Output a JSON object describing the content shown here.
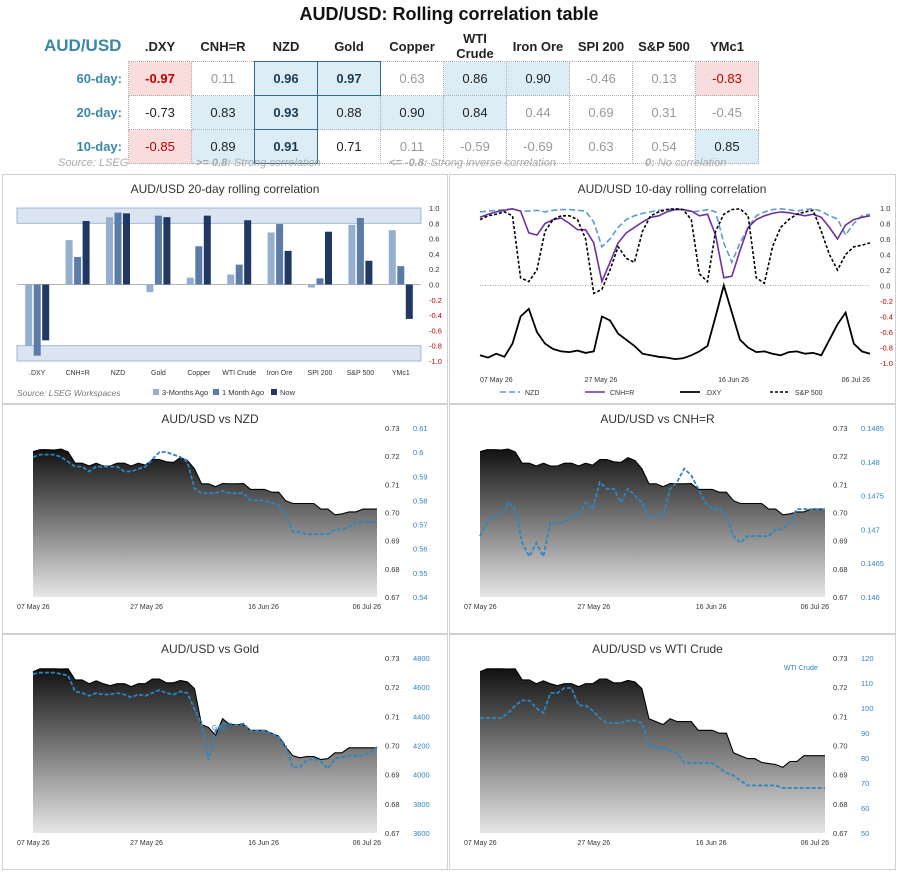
{
  "title": "AUD/USD: Rolling correlation table",
  "table": {
    "pair": "AUD/USD",
    "columns": [
      ".DXY",
      "CNH=R",
      "NZD",
      "Gold",
      "Copper",
      "WTI Crude",
      "Iron Ore",
      "SPI 200",
      "S&P 500",
      "YMc1"
    ],
    "rows": [
      {
        "label": "60-day:",
        "values": [
          "-0.97",
          "0.11",
          "0.96",
          "0.97",
          "0.63",
          "0.86",
          "0.90",
          "-0.46",
          "0.13",
          "-0.83"
        ]
      },
      {
        "label": "20-day:",
        "values": [
          "-0.73",
          "0.83",
          "0.93",
          "0.88",
          "0.90",
          "0.84",
          "0.44",
          "0.69",
          "0.31",
          "-0.45"
        ]
      },
      {
        "label": "10-day:",
        "values": [
          "-0.85",
          "0.89",
          "0.91",
          "0.71",
          "0.11",
          "-0.59",
          "-0.69",
          "0.63",
          "0.54",
          "0.85"
        ]
      }
    ]
  },
  "footer": {
    "source": "Source: LSEG",
    "strong_key": ">= 0.8:",
    "strong_text": "Strong correlation",
    "inverse_key": "<= -0.8:",
    "inverse_text": "Strong inverse correlation",
    "none_key": "0:",
    "none_text": "No correlation"
  },
  "colors": {
    "accent": "#3b86a8",
    "strong_bg": "#dcedf5",
    "inverse_bg": "#f9dcdc",
    "inverse_text": "#c00000"
  },
  "chart_data": [
    {
      "type": "bar",
      "title": "AUD/USD 20-day rolling correlation",
      "source": "Source: LSEG Workspaces",
      "categories": [
        ".DXY",
        "CNH=R",
        "NZD",
        "Gold",
        "Copper",
        "WTI Crude",
        "Iron Ore",
        "SPI 200",
        "S&P 500",
        "YMc1"
      ],
      "series": [
        {
          "name": "3-Months Ago",
          "values": [
            -0.8,
            0.58,
            0.88,
            -0.1,
            0.09,
            0.13,
            0.68,
            -0.04,
            0.78,
            0.71
          ]
        },
        {
          "name": "1 Month Ago",
          "values": [
            -0.93,
            0.36,
            0.94,
            0.9,
            0.5,
            0.26,
            0.79,
            0.08,
            0.87,
            0.24
          ]
        },
        {
          "name": "Now",
          "values": [
            -0.73,
            0.83,
            0.93,
            0.88,
            0.9,
            0.84,
            0.44,
            0.69,
            0.31,
            -0.45
          ]
        }
      ],
      "ylim": [
        -1.0,
        1.0
      ],
      "yticks": [
        "1.0",
        "0.8",
        "0.6",
        "0.4",
        "0.2",
        "0.0",
        "-0.2",
        "-0.4",
        "-0.6",
        "-0.8",
        "-1.0"
      ],
      "legend": "bottom"
    },
    {
      "type": "line",
      "title": "AUD/USD 10-day rolling correlation",
      "x_labels": [
        "07 May 26",
        "27 May 26",
        "16 Jun 26",
        "06 Jul 26"
      ],
      "ylim": [
        -1.0,
        1.0
      ],
      "yticks": [
        "1.0",
        "0.8",
        "0.6",
        "0.4",
        "0.2",
        "0.0",
        "-0.2",
        "-0.4",
        "-0.6",
        "-0.8",
        "-1.0"
      ],
      "series": [
        {
          "name": "NZD",
          "values": [
            0.95,
            0.96,
            0.97,
            0.98,
            0.99,
            0.96,
            0.96,
            0.97,
            0.95,
            0.97,
            0.98,
            0.98,
            0.97,
            0.96,
            0.82,
            0.5,
            0.6,
            0.75,
            0.85,
            0.9,
            0.93,
            0.95,
            0.97,
            0.98,
            0.99,
            0.98,
            0.95,
            0.96,
            0.98,
            0.95,
            0.55,
            0.3,
            0.55,
            0.75,
            0.9,
            0.95,
            0.98,
            0.99,
            0.98,
            0.96,
            0.98,
            0.99,
            0.96,
            0.9,
            0.86,
            0.65,
            0.8,
            0.9,
            0.92
          ]
        },
        {
          "name": "CNH=R",
          "values": [
            0.88,
            0.92,
            0.95,
            0.97,
            0.99,
            0.96,
            0.68,
            0.65,
            0.8,
            0.85,
            0.87,
            0.8,
            0.72,
            0.72,
            0.55,
            0.05,
            0.3,
            0.55,
            0.68,
            0.75,
            0.82,
            0.88,
            0.9,
            0.95,
            0.98,
            0.98,
            0.96,
            0.9,
            0.92,
            0.65,
            0.1,
            0.12,
            0.45,
            0.75,
            0.85,
            0.9,
            0.93,
            0.95,
            0.94,
            0.92,
            0.9,
            0.92,
            0.88,
            0.75,
            0.6,
            0.78,
            0.85,
            0.88,
            0.9
          ]
        },
        {
          "name": ".DXY",
          "values": [
            -0.9,
            -0.93,
            -0.88,
            -0.92,
            -0.75,
            -0.4,
            -0.3,
            -0.6,
            -0.75,
            -0.82,
            -0.85,
            -0.86,
            -0.84,
            -0.87,
            -0.85,
            -0.4,
            -0.45,
            -0.62,
            -0.7,
            -0.78,
            -0.88,
            -0.9,
            -0.92,
            -0.93,
            -0.95,
            -0.94,
            -0.9,
            -0.85,
            -0.78,
            -0.4,
            0.0,
            -0.35,
            -0.7,
            -0.8,
            -0.86,
            -0.85,
            -0.88,
            -0.9,
            -0.86,
            -0.85,
            -0.88,
            -0.87,
            -0.9,
            -0.7,
            -0.5,
            -0.35,
            -0.75,
            -0.85,
            -0.88
          ]
        },
        {
          "name": "S&P 500",
          "values": [
            0.85,
            0.9,
            0.92,
            0.95,
            0.9,
            0.1,
            0.05,
            0.2,
            0.7,
            0.85,
            0.9,
            0.9,
            0.85,
            0.6,
            -0.1,
            -0.05,
            0.2,
            0.5,
            0.35,
            0.3,
            0.7,
            0.9,
            0.95,
            0.98,
            0.99,
            0.98,
            0.85,
            0.15,
            0.05,
            0.7,
            0.92,
            0.98,
            0.99,
            0.9,
            0.1,
            0.03,
            0.5,
            0.75,
            0.85,
            0.92,
            0.95,
            0.97,
            0.7,
            0.4,
            0.2,
            0.4,
            0.5,
            0.52,
            0.55
          ]
        }
      ],
      "legend": "bottom"
    },
    {
      "type": "area",
      "title": "AUD/USD vs NZD",
      "x_labels": [
        "07 May 26",
        "27 May 26",
        "16 Jun 26",
        "06 Jul 26"
      ],
      "left_axis": {
        "ylim": [
          0.67,
          0.73
        ],
        "ticks": [
          "0.73",
          "0.72",
          "0.71",
          "0.70",
          "0.69",
          "0.68",
          "0.67"
        ]
      },
      "right_axis": {
        "ylim": [
          0.54,
          0.61
        ],
        "ticks": [
          "0.61",
          "0.6",
          "0.59",
          "0.58",
          "0.57",
          "0.56",
          "0.55",
          "0.54"
        ]
      },
      "series": [
        {
          "name": "AUD/USD",
          "axis": "left",
          "values": [
            0.7216,
            0.7223,
            0.7223,
            0.7222,
            0.7225,
            0.7215,
            0.7175,
            0.7175,
            0.7165,
            0.7175,
            0.7165,
            0.7165,
            0.7175,
            0.7175,
            0.7165,
            0.7175,
            0.7168,
            0.7188,
            0.7188,
            0.718,
            0.7178,
            0.7195,
            0.7185,
            0.7155,
            0.7102,
            0.7102,
            0.7092,
            0.7103,
            0.7102,
            0.7102,
            0.7103,
            0.7082,
            0.7082,
            0.7082,
            0.7072,
            0.7072,
            0.7042,
            0.7032,
            0.7032,
            0.7032,
            0.7032,
            0.7012,
            0.7012,
            0.6992,
            0.6995,
            0.7002,
            0.7002,
            0.7012,
            0.7012,
            0.7012
          ]
        },
        {
          "name": "NZD",
          "axis": "right",
          "values": [
            0.598,
            0.599,
            0.599,
            0.599,
            0.598,
            0.596,
            0.594,
            0.594,
            0.592,
            0.594,
            0.594,
            0.594,
            0.594,
            0.592,
            0.592,
            0.593,
            0.594,
            0.597,
            0.6,
            0.6,
            0.599,
            0.598,
            0.596,
            0.585,
            0.583,
            0.583,
            0.583,
            0.584,
            0.583,
            0.583,
            0.583,
            0.58,
            0.58,
            0.58,
            0.579,
            0.578,
            0.574,
            0.567,
            0.567,
            0.566,
            0.566,
            0.566,
            0.566,
            0.568,
            0.568,
            0.569,
            0.571,
            0.571,
            0.571,
            0.571
          ]
        }
      ]
    },
    {
      "type": "area",
      "title": "AUD/USD vs CNH=R",
      "x_labels": [
        "07 May 26",
        "27 May 26",
        "16 Jun 26",
        "06 Jul 26"
      ],
      "left_axis": {
        "ylim": [
          0.67,
          0.73
        ],
        "ticks": [
          "0.73",
          "0.72",
          "0.71",
          "0.70",
          "0.69",
          "0.68",
          "0.67"
        ]
      },
      "right_axis": {
        "ylim": [
          0.146,
          0.1485
        ],
        "ticks": [
          "0.1485",
          "0.148",
          "0.1475",
          "0.147",
          "0.1465",
          "0.146"
        ]
      },
      "series": [
        {
          "name": "AUD/USD",
          "axis": "left",
          "values": [
            0.7216,
            0.7223,
            0.7223,
            0.7222,
            0.7225,
            0.7215,
            0.7175,
            0.7175,
            0.7165,
            0.7175,
            0.7165,
            0.7165,
            0.7175,
            0.7175,
            0.7165,
            0.7175,
            0.7168,
            0.7188,
            0.7188,
            0.718,
            0.7178,
            0.7195,
            0.7185,
            0.7155,
            0.7102,
            0.7102,
            0.7092,
            0.7103,
            0.7102,
            0.7102,
            0.7103,
            0.7082,
            0.7082,
            0.7082,
            0.7072,
            0.7072,
            0.7042,
            0.7032,
            0.7032,
            0.7032,
            0.7032,
            0.7012,
            0.7012,
            0.6992,
            0.6995,
            0.7002,
            0.7002,
            0.7012,
            0.7012,
            0.7012
          ]
        },
        {
          "name": "CNH=R",
          "axis": "right",
          "values": [
            0.1469,
            0.1471,
            0.1472,
            0.1472,
            0.1474,
            0.1473,
            0.1468,
            0.1466,
            0.1468,
            0.1466,
            0.1471,
            0.1471,
            0.1471,
            0.1472,
            0.1472,
            0.1474,
            0.1473,
            0.1477,
            0.1476,
            0.1476,
            0.1474,
            0.1476,
            0.1475,
            0.1474,
            0.1472,
            0.1472,
            0.1472,
            0.1476,
            0.1477,
            0.1479,
            0.1478,
            0.1476,
            0.1474,
            0.1473,
            0.1473,
            0.1472,
            0.1469,
            0.1468,
            0.1469,
            0.1469,
            0.1469,
            0.1469,
            0.147,
            0.147,
            0.1471,
            0.1473,
            0.1473,
            0.1473,
            0.1473,
            0.1473
          ]
        }
      ]
    },
    {
      "type": "area",
      "title": "AUD/USD vs Gold",
      "series_label": "Gold",
      "x_labels": [
        "07 May 26",
        "27 May 26",
        "16 Jun 26",
        "06 Jul 26"
      ],
      "left_axis": {
        "ylim": [
          0.67,
          0.73
        ],
        "ticks": [
          "0.73",
          "0.72",
          "0.71",
          "0.70",
          "0.69",
          "0.68",
          "0.67"
        ]
      },
      "right_axis": {
        "ylim": [
          3600,
          4800
        ],
        "ticks": [
          "4800",
          "4600",
          "4400",
          "4200",
          "4000",
          "3800",
          "3600"
        ]
      },
      "series": [
        {
          "name": "AUD/USD",
          "axis": "left",
          "values": [
            0.7253,
            0.7263,
            0.7263,
            0.7263,
            0.7262,
            0.7263,
            0.7225,
            0.7225,
            0.7212,
            0.7222,
            0.7212,
            0.7205,
            0.7212,
            0.7212,
            0.7202,
            0.7212,
            0.7212,
            0.7228,
            0.7228,
            0.7215,
            0.7215,
            0.7223,
            0.7218,
            0.7195,
            0.7072,
            0.7062,
            0.7035,
            0.7092,
            0.7072,
            0.7072,
            0.7072,
            0.7052,
            0.7052,
            0.7052,
            0.7042,
            0.7032,
            0.6995,
            0.6965,
            0.6958,
            0.6962,
            0.6962,
            0.6952,
            0.6955,
            0.6975,
            0.6975,
            0.6992,
            0.6992,
            0.6992,
            0.6992,
            0.6992
          ]
        },
        {
          "name": "Gold",
          "axis": "right",
          "values": [
            4690,
            4700,
            4700,
            4700,
            4690,
            4680,
            4570,
            4560,
            4540,
            4560,
            4550,
            4550,
            4560,
            4550,
            4530,
            4550,
            4540,
            4560,
            4580,
            4560,
            4550,
            4570,
            4560,
            4450,
            4350,
            4100,
            4300,
            4350,
            4350,
            4340,
            4350,
            4300,
            4300,
            4300,
            4280,
            4260,
            4200,
            4050,
            4050,
            4100,
            4110,
            4090,
            4040,
            4110,
            4120,
            4130,
            4130,
            4130,
            4150,
            4190
          ]
        }
      ]
    },
    {
      "type": "area",
      "title": "AUD/USD vs WTI Crude",
      "series_label": "WTI Crude",
      "x_labels": [
        "07 May 26",
        "27 May 26",
        "16 Jun 26",
        "06 Jul 26"
      ],
      "left_axis": {
        "ylim": [
          0.67,
          0.73
        ],
        "ticks": [
          "0.73",
          "0.72",
          "0.71",
          "0.70",
          "0.69",
          "0.68",
          "0.67"
        ]
      },
      "right_axis": {
        "ylim": [
          50,
          120
        ],
        "ticks": [
          "120",
          "110",
          "100",
          "90",
          "80",
          "70",
          "60",
          "50"
        ]
      },
      "series": [
        {
          "name": "AUD/USD",
          "axis": "left",
          "values": [
            0.7253,
            0.7263,
            0.7263,
            0.7263,
            0.7262,
            0.7263,
            0.7225,
            0.7225,
            0.7212,
            0.7222,
            0.7212,
            0.7205,
            0.7212,
            0.7212,
            0.7202,
            0.7212,
            0.7212,
            0.7228,
            0.7228,
            0.7215,
            0.7215,
            0.7223,
            0.7218,
            0.7195,
            0.7092,
            0.7082,
            0.7072,
            0.7092,
            0.7082,
            0.7082,
            0.7082,
            0.7052,
            0.7052,
            0.7052,
            0.7042,
            0.7042,
            0.6975,
            0.6965,
            0.6955,
            0.6955,
            0.6942,
            0.6938,
            0.6935,
            0.6925,
            0.6945,
            0.6945,
            0.6965,
            0.6965,
            0.6965,
            0.6965
          ]
        },
        {
          "name": "WTI Crude",
          "axis": "right",
          "values": [
            96,
            96,
            96,
            96,
            98,
            101,
            103,
            103,
            100,
            98,
            106,
            106,
            108,
            108,
            101,
            101,
            99,
            96,
            94,
            94,
            94,
            95,
            95,
            94,
            85,
            84,
            84,
            83,
            82,
            78,
            78,
            78,
            78,
            78,
            76,
            74,
            73,
            71,
            69,
            69,
            69,
            69,
            69,
            68,
            68,
            68,
            68,
            68,
            68,
            68
          ]
        }
      ]
    }
  ]
}
